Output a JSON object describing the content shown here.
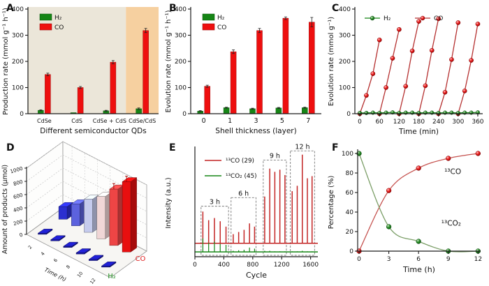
{
  "figure": {
    "background": "#ffffff"
  },
  "colors": {
    "h2_green": "#158515",
    "co_red": "#ee0f0f",
    "c_line_red": "#b53030",
    "e_red": "#c32424",
    "e_green": "#168616",
    "f_red_curve": "#c5524f",
    "f_green_curve": "#7b9e67",
    "a_bg": "#ebe6d9",
    "a_highlight": "#f6d0a0",
    "axis": "#1a1a1a",
    "d_h2_bar": "#1a1aad"
  },
  "chart_data": [
    {
      "panel_label": "A",
      "type": "bar",
      "xlabel": "Different semiconductor QDs",
      "ylabel": "Production rate (mmol g⁻¹ h⁻¹)",
      "ylim": [
        0,
        400
      ],
      "yticks": [
        0,
        100,
        200,
        300,
        400
      ],
      "categories": [
        "CdSe",
        "CdS",
        "CdSe + CdS",
        "CdSe/CdS"
      ],
      "series": [
        {
          "name": "H₂",
          "color": "#158515",
          "values": [
            13,
            4,
            11,
            19
          ],
          "errors": [
            2,
            1,
            2,
            3
          ]
        },
        {
          "name": "CO",
          "color": "#ee0f0f",
          "values": [
            150,
            100,
            197,
            318
          ],
          "errors": [
            5,
            4,
            6,
            8
          ]
        }
      ],
      "highlight_from_category": 3,
      "bg_color": "#ebe6d9",
      "highlight_color": "#f6d0a0",
      "legend": [
        "H₂",
        "CO"
      ]
    },
    {
      "panel_label": "B",
      "type": "bar",
      "xlabel": "Shell thickness (layer)",
      "ylabel": "Evolution rate (mmol g⁻¹ h⁻¹)",
      "ylim": [
        0,
        400
      ],
      "yticks": [
        0,
        100,
        200,
        300,
        400
      ],
      "categories": [
        "0",
        "1",
        "3",
        "5",
        "7"
      ],
      "series": [
        {
          "name": "H₂",
          "color": "#158515",
          "values": [
            10,
            23,
            19,
            22,
            23
          ],
          "errors": [
            2,
            2,
            2,
            2,
            2
          ]
        },
        {
          "name": "CO",
          "color": "#ee0f0f",
          "values": [
            105,
            237,
            318,
            365,
            350
          ],
          "errors": [
            4,
            7,
            8,
            5,
            18
          ]
        }
      ],
      "legend": [
        "H₂",
        "CO"
      ]
    },
    {
      "panel_label": "C",
      "type": "line",
      "xlabel": "Time (min)",
      "ylabel": "Evolution rate (mmol g⁻¹)",
      "ylim": [
        0,
        400
      ],
      "yticks": [
        0,
        100,
        200,
        300,
        400
      ],
      "xlim": [
        0,
        360
      ],
      "xticks": [
        0,
        60,
        120,
        180,
        240,
        300,
        360
      ],
      "co_cycles": [
        [
          [
            0,
            0
          ],
          [
            20,
            70
          ],
          [
            40,
            153
          ],
          [
            60,
            282
          ]
        ],
        [
          [
            60,
            0
          ],
          [
            80,
            100
          ],
          [
            100,
            212
          ],
          [
            120,
            322
          ]
        ],
        [
          [
            120,
            0
          ],
          [
            140,
            105
          ],
          [
            160,
            240
          ],
          [
            180,
            353
          ]
        ],
        [
          [
            180,
            0
          ],
          [
            200,
            107
          ],
          [
            220,
            242
          ],
          [
            240,
            363
          ]
        ],
        [
          [
            240,
            0
          ],
          [
            260,
            82
          ],
          [
            280,
            207
          ],
          [
            300,
            348
          ]
        ],
        [
          [
            300,
            0
          ],
          [
            320,
            87
          ],
          [
            340,
            204
          ],
          [
            360,
            343
          ]
        ]
      ],
      "h2_points": [
        [
          0,
          3
        ],
        [
          20,
          3
        ],
        [
          40,
          4
        ],
        [
          60,
          3
        ],
        [
          80,
          4
        ],
        [
          100,
          5
        ],
        [
          120,
          3
        ],
        [
          140,
          4
        ],
        [
          160,
          4
        ],
        [
          180,
          3
        ],
        [
          200,
          4
        ],
        [
          220,
          4
        ],
        [
          240,
          3
        ],
        [
          260,
          4
        ],
        [
          280,
          4
        ],
        [
          300,
          3
        ],
        [
          320,
          4
        ],
        [
          340,
          4
        ],
        [
          360,
          5
        ]
      ],
      "legend": [
        {
          "name": "H₂",
          "color": "#158515"
        },
        {
          "name": "CO",
          "color": "#ee0f0f"
        }
      ]
    },
    {
      "panel_label": "D",
      "type": "bar3d",
      "ylabel": "Amount of products (μmol)",
      "xlabel": "Time (h)",
      "yticks": [
        0,
        200,
        400,
        600,
        800,
        1000
      ],
      "ymax": 1000,
      "time_ticks": [
        "2",
        "4",
        "6",
        "8",
        "10",
        "12"
      ],
      "rows": [
        {
          "name": "H₂",
          "label_color": "#1d8c1d",
          "values": [
            12,
            12,
            12,
            12,
            12,
            14
          ],
          "colors": [
            "#1a1aad",
            "#1a1aad",
            "#1a1aad",
            "#1a1aad",
            "#1a1aad",
            "#1a1aad"
          ]
        },
        {
          "name": "CO",
          "label_color": "#e02020",
          "values": [
            190,
            330,
            500,
            640,
            850,
            1060
          ],
          "errors": [
            0,
            0,
            0,
            0,
            25,
            20
          ],
          "colors": [
            "#2b2fd0",
            "#5c62de",
            "#c5cbed",
            "#f0d6d6",
            "#ee4545",
            "#e80f0f"
          ]
        }
      ]
    },
    {
      "panel_label": "E",
      "type": "spikes",
      "xlabel": "Cycle",
      "ylabel": "Intensity (a.u.)",
      "xlim": [
        0,
        1700
      ],
      "xticks": [
        0,
        400,
        800,
        1200,
        1600
      ],
      "red_baseline": 0.125,
      "green_baseline": 0.045,
      "red_spikes": [
        [
          110,
          0.42
        ],
        [
          190,
          0.34
        ],
        [
          270,
          0.36
        ],
        [
          350,
          0.33
        ],
        [
          430,
          0.28
        ],
        [
          530,
          0.21
        ],
        [
          605,
          0.23
        ],
        [
          680,
          0.25
        ],
        [
          755,
          0.31
        ],
        [
          825,
          0.28
        ],
        [
          965,
          0.56
        ],
        [
          1035,
          0.82
        ],
        [
          1105,
          0.79
        ],
        [
          1175,
          0.81
        ],
        [
          1245,
          0.76
        ],
        [
          1345,
          0.61
        ],
        [
          1415,
          0.66
        ],
        [
          1485,
          0.95
        ],
        [
          1555,
          0.73
        ],
        [
          1620,
          0.75
        ]
      ],
      "green_spikes": [
        [
          110,
          0.17
        ],
        [
          190,
          0.13
        ],
        [
          270,
          0.14
        ],
        [
          350,
          0.12
        ],
        [
          430,
          0.11
        ],
        [
          530,
          0.055
        ],
        [
          605,
          0.06
        ],
        [
          680,
          0.065
        ],
        [
          755,
          0.085
        ],
        [
          825,
          0.075
        ],
        [
          965,
          0.055
        ],
        [
          1035,
          0.055
        ],
        [
          1105,
          0.05
        ],
        [
          1175,
          0.05
        ],
        [
          1245,
          0.05
        ],
        [
          1345,
          0.05
        ],
        [
          1415,
          0.05
        ],
        [
          1485,
          0.055
        ],
        [
          1555,
          0.05
        ],
        [
          1620,
          0.05
        ]
      ],
      "groups": [
        {
          "label": "3 h",
          "x0": 85,
          "x1": 465,
          "top": 0.47
        },
        {
          "label": "6 h",
          "x0": 500,
          "x1": 845,
          "top": 0.55
        },
        {
          "label": "9 h",
          "x0": 945,
          "x1": 1265,
          "top": 0.9
        },
        {
          "label": "12 h",
          "x0": 1320,
          "x1": 1655,
          "top": 0.985
        }
      ],
      "legend": [
        {
          "name": "¹³CO (29)",
          "color": "#c32424"
        },
        {
          "name": "¹³CO₂ (45)",
          "color": "#168616"
        }
      ]
    },
    {
      "panel_label": "F",
      "type": "scatter",
      "xlabel": "Time (h)",
      "ylabel": "Percentage (%)",
      "xlim": [
        0,
        12
      ],
      "xticks": [
        0,
        3,
        6,
        9,
        12
      ],
      "ylim": [
        0,
        100
      ],
      "yticks": [
        0,
        20,
        40,
        60,
        80,
        100
      ],
      "series": [
        {
          "name": "¹³CO",
          "curve_color": "#c5524f",
          "marker": "red",
          "points": [
            [
              0,
              0
            ],
            [
              3,
              62
            ],
            [
              6,
              85
            ],
            [
              9,
              95
            ],
            [
              12,
              100
            ]
          ],
          "label_xy": [
            8.6,
            79
          ]
        },
        {
          "name": "¹³CO₂",
          "curve_color": "#7b9e67",
          "marker": "green",
          "points": [
            [
              0,
              100
            ],
            [
              3,
              25
            ],
            [
              6,
              10
            ],
            [
              9,
              0
            ],
            [
              12,
              0
            ]
          ],
          "label_xy": [
            8.3,
            26
          ]
        }
      ]
    }
  ]
}
